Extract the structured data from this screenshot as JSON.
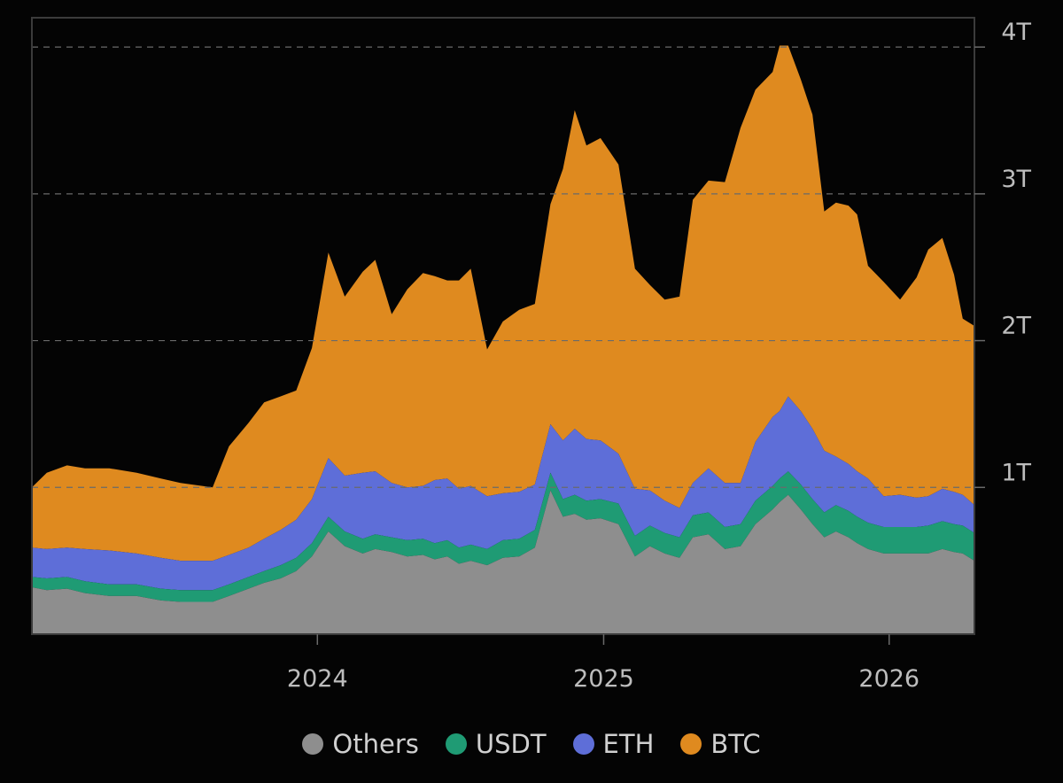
{
  "chart_data": {
    "type": "area",
    "stacked": true,
    "title": "",
    "xlabel": "",
    "ylabel": "",
    "ylim": [
      0,
      4.2
    ],
    "grid": "horizontal dashed",
    "legend_position": "bottom-center",
    "y_ticks": [
      {
        "value": 1,
        "label": "1T"
      },
      {
        "value": 2,
        "label": "2T"
      },
      {
        "value": 3,
        "label": "3T"
      },
      {
        "value": 4,
        "label": "4T"
      }
    ],
    "x_ticks": [
      {
        "value": "2024-01-01",
        "label": "2024"
      },
      {
        "value": "2025-01-01",
        "label": "2025"
      },
      {
        "value": "2026-01-01",
        "label": "2026"
      }
    ],
    "xlim": [
      "2023-01-01",
      "2026-04-20"
    ],
    "x": [
      "2023-01-01",
      "2023-01-20",
      "2023-02-15",
      "2023-03-10",
      "2023-04-10",
      "2023-05-15",
      "2023-06-15",
      "2023-07-10",
      "2023-08-20",
      "2023-09-10",
      "2023-10-05",
      "2023-10-25",
      "2023-11-15",
      "2023-12-05",
      "2023-12-25",
      "2024-01-15",
      "2024-02-05",
      "2024-02-28",
      "2024-03-15",
      "2024-04-05",
      "2024-04-25",
      "2024-05-15",
      "2024-05-30",
      "2024-06-15",
      "2024-06-30",
      "2024-07-15",
      "2024-08-05",
      "2024-08-25",
      "2024-09-15",
      "2024-10-05",
      "2024-10-25",
      "2024-11-10",
      "2024-11-25",
      "2024-12-10",
      "2024-12-28",
      "2025-01-20",
      "2025-02-10",
      "2025-03-01",
      "2025-03-20",
      "2025-04-08",
      "2025-04-25",
      "2025-05-15",
      "2025-06-05",
      "2025-06-25",
      "2025-07-14",
      "2025-08-05",
      "2025-08-14",
      "2025-08-25",
      "2025-09-10",
      "2025-09-25",
      "2025-10-10",
      "2025-10-25",
      "2025-11-10",
      "2025-11-21",
      "2025-12-05",
      "2025-12-25",
      "2026-01-15",
      "2026-02-05",
      "2026-02-20",
      "2026-03-10",
      "2026-03-25",
      "2026-04-05",
      "2026-04-20"
    ],
    "series": [
      {
        "name": "Others",
        "color": "#8e8e8e",
        "values": [
          0.32,
          0.3,
          0.31,
          0.28,
          0.26,
          0.26,
          0.23,
          0.22,
          0.22,
          0.26,
          0.31,
          0.35,
          0.38,
          0.43,
          0.53,
          0.7,
          0.6,
          0.55,
          0.58,
          0.56,
          0.53,
          0.54,
          0.51,
          0.53,
          0.48,
          0.5,
          0.47,
          0.52,
          0.53,
          0.59,
          0.98,
          0.8,
          0.82,
          0.78,
          0.79,
          0.75,
          0.53,
          0.6,
          0.55,
          0.52,
          0.66,
          0.68,
          0.58,
          0.6,
          0.75,
          0.85,
          0.9,
          0.95,
          0.85,
          0.75,
          0.66,
          0.7,
          0.66,
          0.62,
          0.58,
          0.55,
          0.55,
          0.55,
          0.55,
          0.58,
          0.56,
          0.55,
          0.5
        ]
      },
      {
        "name": "USDT",
        "color": "#1f9b74",
        "values": [
          0.07,
          0.08,
          0.08,
          0.08,
          0.08,
          0.08,
          0.08,
          0.08,
          0.08,
          0.08,
          0.08,
          0.08,
          0.09,
          0.09,
          0.09,
          0.1,
          0.1,
          0.1,
          0.1,
          0.1,
          0.11,
          0.11,
          0.11,
          0.11,
          0.11,
          0.11,
          0.11,
          0.12,
          0.12,
          0.12,
          0.12,
          0.12,
          0.13,
          0.13,
          0.13,
          0.14,
          0.14,
          0.14,
          0.14,
          0.14,
          0.15,
          0.15,
          0.15,
          0.15,
          0.16,
          0.16,
          0.16,
          0.16,
          0.17,
          0.17,
          0.17,
          0.18,
          0.18,
          0.18,
          0.18,
          0.18,
          0.18,
          0.18,
          0.19,
          0.19,
          0.19,
          0.19,
          0.19
        ]
      },
      {
        "name": "ETH",
        "color": "#5e6ed8",
        "values": [
          0.2,
          0.2,
          0.2,
          0.22,
          0.23,
          0.21,
          0.21,
          0.2,
          0.2,
          0.2,
          0.2,
          0.22,
          0.24,
          0.26,
          0.3,
          0.4,
          0.38,
          0.45,
          0.43,
          0.37,
          0.36,
          0.36,
          0.43,
          0.42,
          0.4,
          0.4,
          0.36,
          0.32,
          0.32,
          0.31,
          0.33,
          0.4,
          0.45,
          0.42,
          0.4,
          0.34,
          0.32,
          0.24,
          0.22,
          0.2,
          0.22,
          0.3,
          0.3,
          0.28,
          0.4,
          0.47,
          0.46,
          0.51,
          0.5,
          0.48,
          0.42,
          0.33,
          0.32,
          0.31,
          0.3,
          0.21,
          0.22,
          0.2,
          0.2,
          0.22,
          0.22,
          0.21,
          0.19
        ]
      },
      {
        "name": "BTC",
        "color": "#df8a1f",
        "values": [
          0.41,
          0.52,
          0.56,
          0.55,
          0.56,
          0.55,
          0.54,
          0.53,
          0.5,
          0.74,
          0.85,
          0.93,
          0.91,
          0.88,
          1.03,
          1.4,
          1.22,
          1.37,
          1.44,
          1.15,
          1.35,
          1.45,
          1.39,
          1.35,
          1.42,
          1.48,
          1.0,
          1.17,
          1.24,
          1.23,
          1.5,
          1.85,
          2.17,
          2.0,
          2.06,
          1.97,
          1.5,
          1.4,
          1.37,
          1.44,
          1.93,
          1.96,
          2.05,
          2.42,
          2.4,
          2.35,
          2.49,
          2.39,
          2.26,
          2.14,
          1.63,
          1.73,
          1.76,
          1.75,
          1.45,
          1.46,
          1.33,
          1.5,
          1.68,
          1.71,
          1.48,
          1.2,
          1.22
        ]
      }
    ]
  },
  "legend": {
    "items": [
      {
        "label": "Others",
        "color": "#8e8e8e"
      },
      {
        "label": "USDT",
        "color": "#1f9b74"
      },
      {
        "label": "ETH",
        "color": "#5e6ed8"
      },
      {
        "label": "BTC",
        "color": "#df8a1f"
      }
    ]
  }
}
